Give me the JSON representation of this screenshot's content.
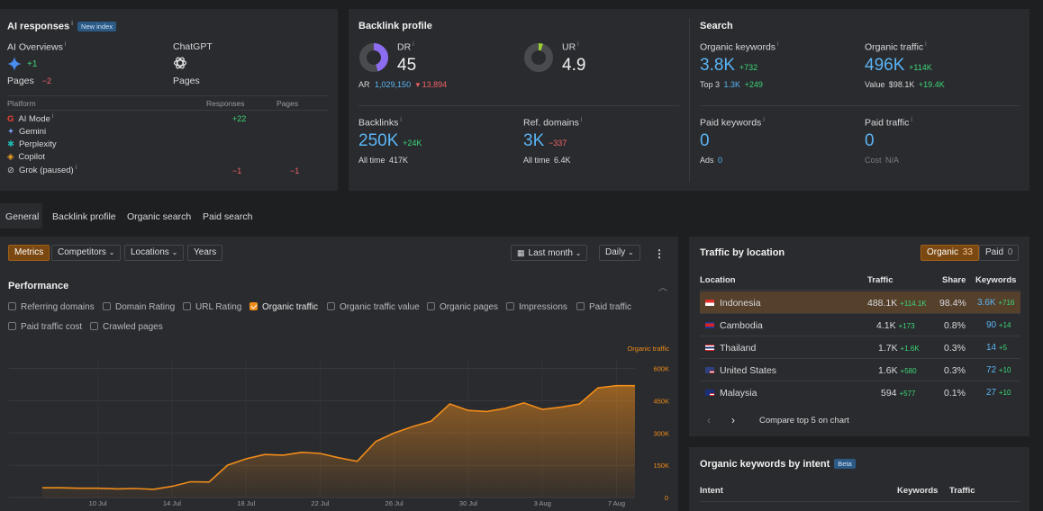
{
  "ai_responses": {
    "title": "AI responses",
    "badge": "New index",
    "ai_overviews": {
      "label": "AI Overviews",
      "delta": "+1",
      "pages_label": "Pages",
      "pages_delta": "−2"
    },
    "chatgpt": {
      "label": "ChatGPT",
      "pages_label": "Pages"
    },
    "table": {
      "headers": [
        "Platform",
        "Responses",
        "Pages"
      ],
      "rows": [
        {
          "name": "AI Mode",
          "icon": "google-icon",
          "responses": "+22",
          "pages": "",
          "info": true
        },
        {
          "name": "Gemini",
          "icon": "gemini-icon",
          "responses": "",
          "pages": "",
          "info": false
        },
        {
          "name": "Perplexity",
          "icon": "perplexity-icon",
          "responses": "",
          "pages": "",
          "info": false
        },
        {
          "name": "Copilot",
          "icon": "copilot-icon",
          "responses": "",
          "pages": "",
          "info": false
        },
        {
          "name": "Grok (paused)",
          "icon": "grok-icon",
          "responses": "−1",
          "pages": "−1",
          "info": true
        }
      ]
    }
  },
  "backlink_profile": {
    "title": "Backlink profile",
    "dr": {
      "label": "DR",
      "value": "45",
      "fill_percent": 45
    },
    "ur": {
      "label": "UR",
      "value": "4.9",
      "fill_percent": 5
    },
    "ar": {
      "label": "AR",
      "value": "1,029,150",
      "delta": "▾ 13,894"
    },
    "backlinks": {
      "label": "Backlinks",
      "value": "250K",
      "delta": "+24K",
      "alltime_label": "All time",
      "alltime": "417K"
    },
    "ref_domains": {
      "label": "Ref. domains",
      "value": "3K",
      "delta": "−337",
      "alltime_label": "All time",
      "alltime": "6.4K"
    }
  },
  "search": {
    "title": "Search",
    "organic_keywords": {
      "label": "Organic keywords",
      "value": "3.8K",
      "delta": "+732",
      "top3_label": "Top 3",
      "top3": "1.3K",
      "top3_delta": "+249"
    },
    "organic_traffic": {
      "label": "Organic traffic",
      "value": "496K",
      "delta": "+114K",
      "value_label": "Value",
      "value_amount": "$98.1K",
      "value_delta": "+19.4K"
    },
    "paid_keywords": {
      "label": "Paid keywords",
      "value": "0",
      "ads_label": "Ads",
      "ads": "0"
    },
    "paid_traffic": {
      "label": "Paid traffic",
      "value": "0",
      "cost_label": "Cost",
      "cost": "N/A"
    }
  },
  "main_tabs": [
    "General",
    "Backlink profile",
    "Organic search",
    "Paid search"
  ],
  "toolbar": {
    "metrics": "Metrics",
    "competitors": "Competitors",
    "locations": "Locations",
    "years": "Years",
    "period": "Last month",
    "granularity": "Daily",
    "more": "⋮"
  },
  "performance": {
    "title": "Performance",
    "checkboxes": [
      {
        "label": "Referring domains",
        "checked": false
      },
      {
        "label": "Domain Rating",
        "checked": false
      },
      {
        "label": "URL Rating",
        "checked": false
      },
      {
        "label": "Organic traffic",
        "checked": true
      },
      {
        "label": "Organic traffic value",
        "checked": false
      },
      {
        "label": "Organic pages",
        "checked": false
      },
      {
        "label": "Impressions",
        "checked": false
      },
      {
        "label": "Paid traffic",
        "checked": false
      },
      {
        "label": "Paid traffic cost",
        "checked": false
      },
      {
        "label": "Crawled pages",
        "checked": false
      }
    ]
  },
  "colors": {
    "accent": "#f08c1a",
    "link": "#5ab4f5",
    "positive": "#3dd67a",
    "negative": "#f0626a"
  },
  "chart_data": {
    "type": "area",
    "series": [
      {
        "name": "Organic traffic",
        "color": "#f08c1a"
      }
    ],
    "x": [
      "7 Jul",
      "8 Jul",
      "9 Jul",
      "10 Jul",
      "11 Jul",
      "12 Jul",
      "13 Jul",
      "14 Jul",
      "15 Jul",
      "16 Jul",
      "17 Jul",
      "18 Jul",
      "19 Jul",
      "20 Jul",
      "21 Jul",
      "22 Jul",
      "23 Jul",
      "24 Jul",
      "25 Jul",
      "26 Jul",
      "27 Jul",
      "28 Jul",
      "29 Jul",
      "30 Jul",
      "31 Jul",
      "1 Aug",
      "2 Aug",
      "3 Aug",
      "4 Aug",
      "5 Aug",
      "6 Aug",
      "7 Aug",
      "8 Aug"
    ],
    "y": [
      45000,
      45000,
      43000,
      43000,
      40000,
      42000,
      38000,
      52000,
      73000,
      72000,
      150000,
      180000,
      200000,
      197000,
      210000,
      205000,
      185000,
      168000,
      260000,
      300000,
      330000,
      355000,
      435000,
      405000,
      400000,
      415000,
      440000,
      410000,
      420000,
      435000,
      510000,
      520000,
      520000
    ],
    "xticks": [
      "10 Jul",
      "14 Jul",
      "18 Jul",
      "22 Jul",
      "26 Jul",
      "30 Jul",
      "3 Aug",
      "7 Aug"
    ],
    "yticks": [
      "0",
      "150K",
      "300K",
      "450K",
      "600K"
    ],
    "ylim": [
      0,
      640000
    ],
    "axis_label": "Organic traffic",
    "grid": true
  },
  "traffic_by_location": {
    "title": "Traffic by location",
    "organic_label": "Organic",
    "organic_count": "33",
    "paid_label": "Paid",
    "paid_count": "0",
    "headers": [
      "Location",
      "Traffic",
      "Share",
      "Keywords"
    ],
    "rows": [
      {
        "country": "Indonesia",
        "traffic": "488.1K",
        "traffic_delta": "+114.1K",
        "share": "98.4%",
        "keywords": "3.6K",
        "kw_delta": "+716"
      },
      {
        "country": "Cambodia",
        "traffic": "4.1K",
        "traffic_delta": "+173",
        "share": "0.8%",
        "keywords": "90",
        "kw_delta": "+14"
      },
      {
        "country": "Thailand",
        "traffic": "1.7K",
        "traffic_delta": "+1.6K",
        "share": "0.3%",
        "keywords": "14",
        "kw_delta": "+5"
      },
      {
        "country": "United States",
        "traffic": "1.6K",
        "traffic_delta": "+580",
        "share": "0.3%",
        "keywords": "72",
        "kw_delta": "+10"
      },
      {
        "country": "Malaysia",
        "traffic": "594",
        "traffic_delta": "+577",
        "share": "0.1%",
        "keywords": "27",
        "kw_delta": "+10"
      }
    ],
    "compare_label": "Compare top 5 on chart"
  },
  "keywords_by_intent": {
    "title": "Organic keywords by intent",
    "badge": "Beta",
    "headers": [
      "Intent",
      "Keywords",
      "Traffic"
    ]
  }
}
